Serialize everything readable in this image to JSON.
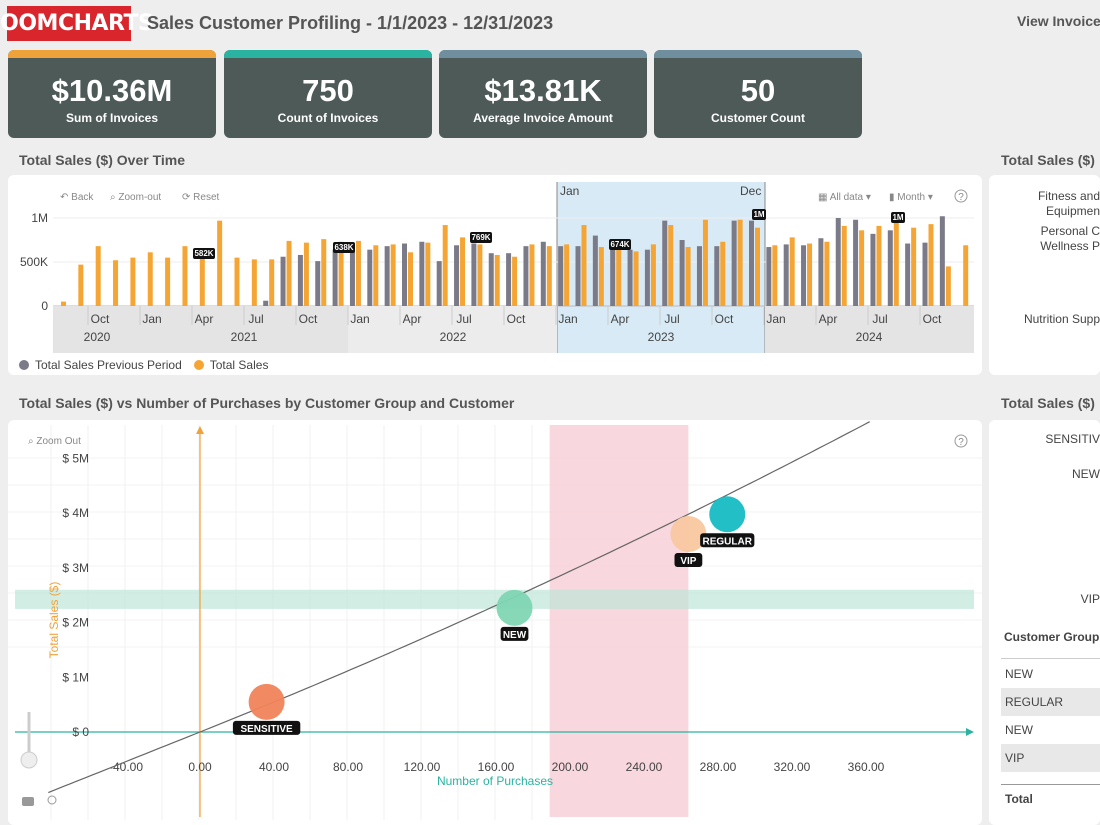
{
  "header": {
    "logo": "ZOOMCHARTS",
    "title": "Sales Customer Profiling - 1/1/2023 - 12/31/2023",
    "view_link": "View Invoice"
  },
  "kpis": [
    {
      "value": "$10.36M",
      "label": "Sum of Invoices",
      "color": "#f0a23a"
    },
    {
      "value": "750",
      "label": "Count of Invoices",
      "color": "#2ab3a1"
    },
    {
      "value": "$13.81K",
      "label": "Average Invoice Amount",
      "color": "#6f8f9e"
    },
    {
      "value": "50",
      "label": "Customer Count",
      "color": "#6f8f9e"
    }
  ],
  "timeline": {
    "title": "Total Sales ($) Over Time",
    "toolbar": {
      "back": "Back",
      "zoom_out": "Zoom-out",
      "reset": "Reset",
      "all_data": "All data",
      "month": "Month"
    },
    "selection": {
      "start": "Jan",
      "end": "Dec"
    },
    "y_ticks": [
      "1M",
      "500K",
      "0"
    ],
    "month_ticks": [
      "Oct",
      "Jan",
      "Apr",
      "Jul",
      "Oct",
      "Jan",
      "Apr",
      "Jul",
      "Oct",
      "Jan",
      "Apr",
      "Jul",
      "Oct",
      "Jan",
      "Apr",
      "Jul",
      "Oct"
    ],
    "years": [
      "2020",
      "2021",
      "2022",
      "2023",
      "2024"
    ],
    "badges": [
      "582K",
      "638K",
      "769K",
      "674K",
      "1M",
      "1M"
    ],
    "legend": {
      "previous": "Total Sales Previous Period",
      "current": "Total Sales"
    },
    "colors": {
      "previous": "#7a7a88",
      "current": "#f5a534",
      "selection": "#d8eaf5"
    }
  },
  "right_top": {
    "title": "Total Sales ($)",
    "items": [
      "Fitness and Equipmen",
      "Personal C Wellness P",
      "Nutrition Supp"
    ]
  },
  "scatter": {
    "title": "Total Sales ($) vs Number of Purchases by Customer Group and Customer",
    "zoom_out": "Zoom Out",
    "ylabel": "Total Sales ($)",
    "xlabel": "Number of Purchases",
    "y_ticks": [
      "$ 5M",
      "$ 4M",
      "$ 3M",
      "$ 2M",
      "$ 1M",
      "$ 0"
    ],
    "x_ticks": [
      "-40.00",
      "0.00",
      "40.00",
      "80.00",
      "120.00",
      "160.00",
      "200.00",
      "240.00",
      "280.00",
      "320.00",
      "360.00"
    ],
    "points": [
      {
        "label": "SENSITIVE",
        "x": 36,
        "y": 0.55,
        "color": "#f0845a"
      },
      {
        "label": "NEW",
        "x": 170,
        "y": 2.27,
        "color": "#7fd6b3"
      },
      {
        "label": "VIP",
        "x": 264,
        "y": 3.62,
        "color": "#f8c8a0"
      },
      {
        "label": "REGULAR",
        "x": 285,
        "y": 3.98,
        "color": "#17bcc4"
      }
    ]
  },
  "right_bottom": {
    "title": "Total Sales ($)",
    "labels": [
      "SENSITIV",
      "NEW",
      "VIP"
    ],
    "table_header": "Customer Group",
    "rows": [
      "NEW",
      "REGULAR",
      "NEW",
      "VIP"
    ],
    "total": "Total"
  }
}
